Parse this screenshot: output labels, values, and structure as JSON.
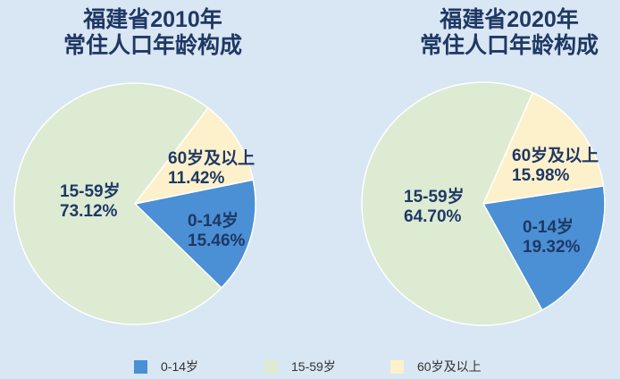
{
  "page": {
    "background_color": "#d9e6f3",
    "title_text_color": "#1f3864",
    "slice_border_color": "#ffffff",
    "legend_text_color": "#333333"
  },
  "chart_data": [
    {
      "type": "pie",
      "title": "福建省2010年常住人口年龄构成",
      "title_lines": [
        "福建省2010年",
        "常住人口年龄构成"
      ],
      "categories": [
        "0-14岁",
        "15-59岁",
        "60岁及以上"
      ],
      "values": [
        15.46,
        73.12,
        11.42
      ],
      "value_unit": "%",
      "colors": [
        "#4b8fd4",
        "#ddebd3",
        "#fdf1cc"
      ],
      "rotation_cw_deg": 78.5,
      "slice_labels": [
        {
          "lines": [
            "0-14岁",
            "15.46%"
          ]
        },
        {
          "lines": [
            "15-59岁",
            "73.12%"
          ]
        },
        {
          "lines": [
            "60岁及以上",
            "11.42%"
          ]
        }
      ]
    },
    {
      "type": "pie",
      "title": "福建省2020年常住人口年龄构成",
      "title_lines": [
        "福建省2020年",
        "常住人口年龄构成"
      ],
      "categories": [
        "0-14岁",
        "15-59岁",
        "60岁及以上"
      ],
      "values": [
        19.32,
        64.7,
        15.98
      ],
      "value_unit": "%",
      "colors": [
        "#4b8fd4",
        "#ddebd3",
        "#fdf1cc"
      ],
      "rotation_cw_deg": 81.5,
      "slice_labels": [
        {
          "lines": [
            "0-14岁",
            "19.32%"
          ]
        },
        {
          "lines": [
            "15-59岁",
            "64.70%"
          ]
        },
        {
          "lines": [
            "60岁及以上",
            "15.98%"
          ]
        }
      ]
    }
  ],
  "legend": {
    "position": "bottom",
    "items": [
      {
        "label": "0-14岁",
        "color": "#4b8fd4"
      },
      {
        "label": "15-59岁",
        "color": "#ddebd3"
      },
      {
        "label": "60岁及以上",
        "color": "#fdf1cc"
      }
    ]
  }
}
